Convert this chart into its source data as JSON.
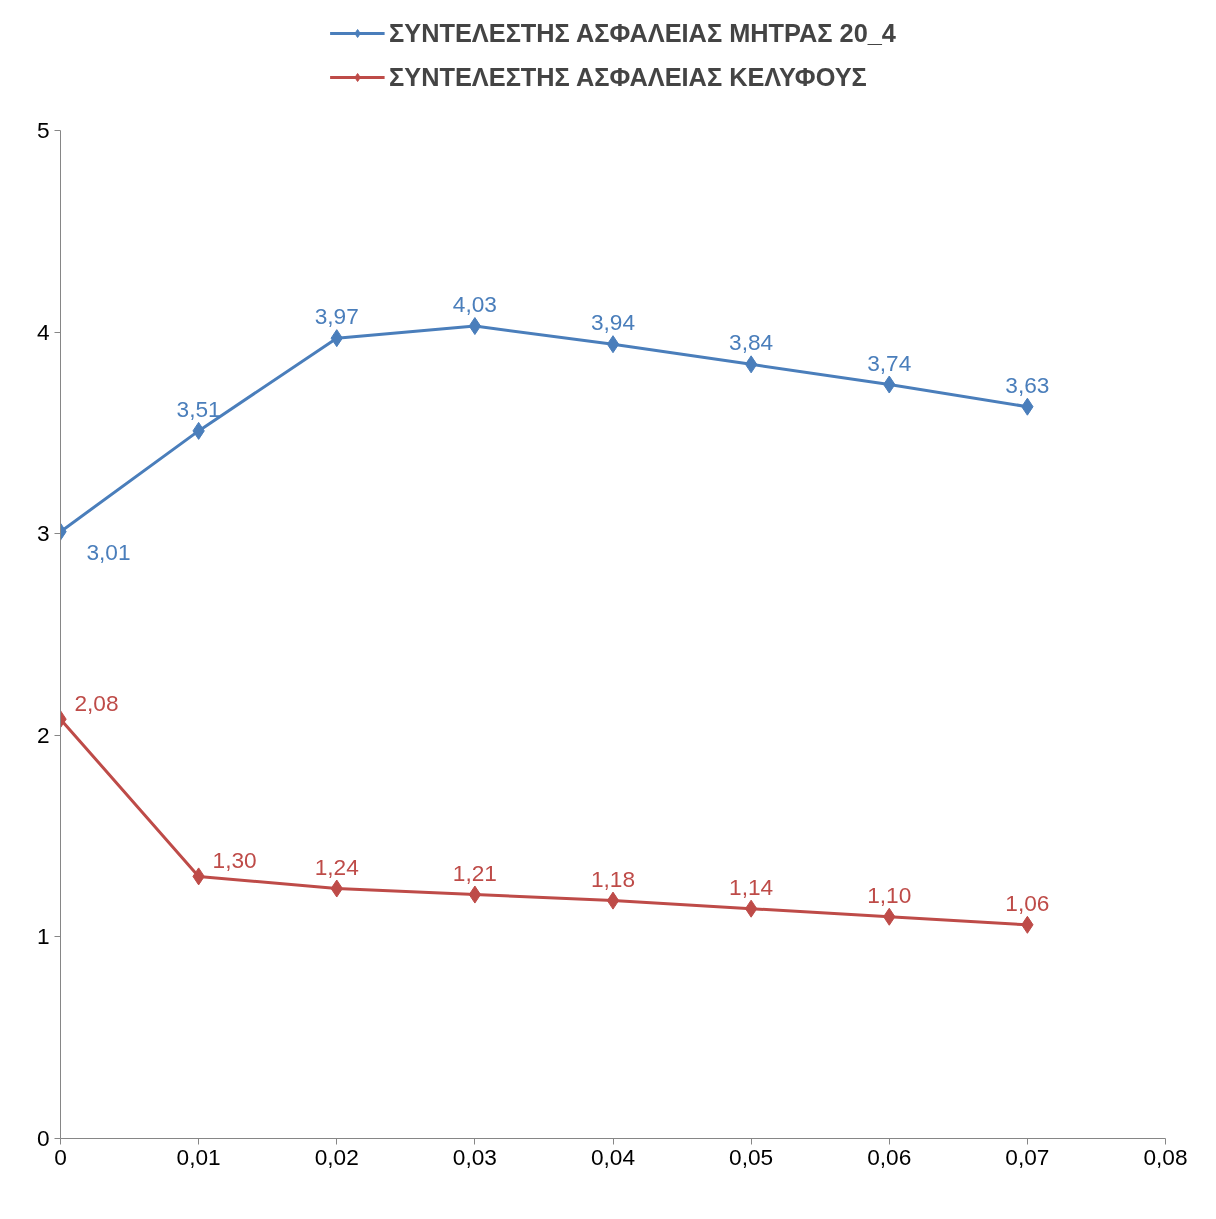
{
  "chart_data": {
    "type": "line",
    "x": [
      0,
      0.01,
      0.02,
      0.03,
      0.04,
      0.05,
      0.06,
      0.07
    ],
    "series": [
      {
        "name": "ΣΥΝΤΕΛΕΣΤΗΣ ΑΣΦΑΛΕΙΑΣ ΜΗΤΡΑΣ 20_4",
        "color": "#4a7ebb",
        "values": [
          3.01,
          3.51,
          3.97,
          4.03,
          3.94,
          3.84,
          3.74,
          3.63
        ],
        "value_labels": [
          "3,01",
          "3,51",
          "3,97",
          "4,03",
          "3,94",
          "3,84",
          "3,74",
          "3,63"
        ]
      },
      {
        "name": "ΣΥΝΤΕΛΕΣΤΗΣ ΑΣΦΑΛΕΙΑΣ ΚΕΛΥΦΟΥΣ",
        "color": "#be4b48",
        "values": [
          2.08,
          1.3,
          1.24,
          1.21,
          1.18,
          1.14,
          1.1,
          1.06
        ],
        "value_labels": [
          "2,08",
          "1,30",
          "1,24",
          "1,21",
          "1,18",
          "1,14",
          "1,10",
          "1,06"
        ]
      }
    ],
    "xlim": [
      0,
      0.08
    ],
    "ylim": [
      0,
      5
    ],
    "xticks": [
      0,
      {
        "value": 0.01,
        "label": "0,01"
      },
      {
        "value": 0.02,
        "label": "0,02"
      },
      {
        "value": 0.03,
        "label": "0,03"
      },
      {
        "value": 0.04,
        "label": "0,04"
      },
      {
        "value": 0.05,
        "label": "0,05"
      },
      {
        "value": 0.06,
        "label": "0,06"
      },
      {
        "value": 0.07,
        "label": "0,07"
      },
      {
        "value": 0.08,
        "label": "0,08"
      }
    ],
    "yticks": [
      0,
      1,
      2,
      3,
      4,
      5
    ],
    "grid": false,
    "legend": "top",
    "marker": "diamond",
    "line_style": "solid"
  }
}
